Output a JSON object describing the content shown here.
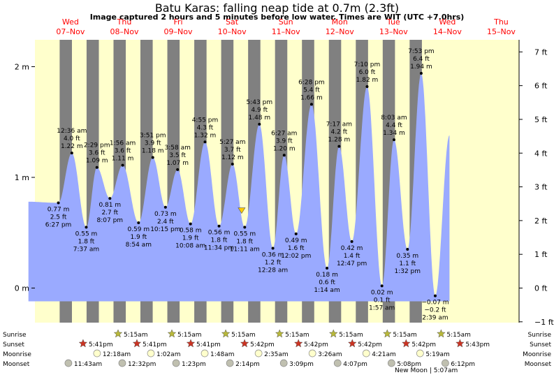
{
  "title": "Batu Karas: falling  neap tide at 0.7m (2.3ft)",
  "subtitle": "Image captured 2 hours and 5 minutes before low water. Times are WIT (UTC +7.0hrs)",
  "colors": {
    "day_bg": "#ffffcc",
    "night_bg": "#808080",
    "water": "#9aaaff",
    "marker": "#ffcc00"
  },
  "chart_data": {
    "type": "area",
    "day_labels": [
      {
        "dow": "Wed",
        "date": "07–Nov",
        "day": 7
      },
      {
        "dow": "Thu",
        "date": "08–Nov",
        "day": 8
      },
      {
        "dow": "Fri",
        "date": "09–Nov",
        "day": 9
      },
      {
        "dow": "Sat",
        "date": "10–Nov",
        "day": 10
      },
      {
        "dow": "Sun",
        "date": "11–Nov",
        "day": 11
      },
      {
        "dow": "Mon",
        "date": "12–Nov",
        "day": 12
      },
      {
        "dow": "Tue",
        "date": "13–Nov",
        "day": 13
      },
      {
        "dow": "Wed",
        "date": "14–Nov",
        "day": 14
      },
      {
        "dow": "Thu",
        "date": "15–Nov",
        "day": 15
      }
    ],
    "x_range_days": [
      6.66,
      15.0
    ],
    "y_left": {
      "unit": "m",
      "ticks": [
        {
          "v": 0,
          "label": "0 m"
        },
        {
          "v": 1,
          "label": "1 m"
        },
        {
          "v": 2,
          "label": "2 m"
        }
      ],
      "range": [
        -0.32,
        2.33
      ]
    },
    "y_right": {
      "unit": "ft",
      "ticks": [
        "−1 ft",
        "0 ft",
        "1 ft",
        "2 ft",
        "3 ft",
        "4 ft",
        "5 ft",
        "6 ft",
        "7 ft"
      ]
    },
    "tides": [
      {
        "day": 7.216,
        "m": 0.77,
        "time": "6:27 pm",
        "m_label": "0.77 m",
        "ft": "2.5 ft",
        "type": "low"
      },
      {
        "day": 7.466,
        "m": 1.22,
        "time": "12:36 am",
        "m_label": "1.22 m",
        "ft": "4.0 ft",
        "type": "high"
      },
      {
        "day": 7.734,
        "m": 0.55,
        "time": "7:37 am",
        "m_label": "0.55 m",
        "ft": "1.8 ft",
        "type": "low"
      },
      {
        "day": 7.932,
        "m": 1.09,
        "time": "2:29 pm",
        "m_label": "1.09 m",
        "ft": "3.6 ft",
        "type": "high"
      },
      {
        "day": 8.173,
        "m": 0.81,
        "time": "8:07 pm",
        "m_label": "0.81 m",
        "ft": "2.7 ft",
        "type": "low"
      },
      {
        "day": 8.41,
        "m": 1.11,
        "time": "1:56 am",
        "m_label": "1.11 m",
        "ft": "3.6 ft",
        "type": "high"
      },
      {
        "day": 8.705,
        "m": 0.59,
        "time": "8:54 am",
        "m_label": "0.59 m",
        "ft": "1.9 ft",
        "type": "low"
      },
      {
        "day": 8.97,
        "m": 1.18,
        "time": "3:51 pm",
        "m_label": "1.18 m",
        "ft": "3.9 ft",
        "type": "high"
      },
      {
        "day": 9.205,
        "m": 0.73,
        "time": "10:15 pm",
        "m_label": "0.73 m",
        "ft": "2.4 ft",
        "type": "low"
      },
      {
        "day": 9.43,
        "m": 1.07,
        "time": "3:58 am",
        "m_label": "1.07 m",
        "ft": "3.5 ft",
        "type": "high"
      },
      {
        "day": 9.67,
        "m": 0.58,
        "time": "10:08 am",
        "m_label": "0.58 m",
        "ft": "1.9 ft",
        "type": "low"
      },
      {
        "day": 9.94,
        "m": 1.32,
        "time": "4:55 pm",
        "m_label": "1.32 m",
        "ft": "4.3 ft",
        "type": "high"
      },
      {
        "day": 10.2,
        "m": 0.56,
        "time": "11:34 pm",
        "m_label": "0.56 m",
        "ft": "1.8 ft",
        "type": "low"
      },
      {
        "day": 10.45,
        "m": 1.12,
        "time": "5:27 am",
        "m_label": "1.12 m",
        "ft": "3.7 ft",
        "type": "high"
      },
      {
        "day": 10.677,
        "m": 0.55,
        "time": "11:11 am",
        "m_label": "0.55 m",
        "ft": "1.8 ft",
        "type": "low"
      },
      {
        "day": 10.95,
        "m": 1.48,
        "time": "5:43 pm",
        "m_label": "1.48 m",
        "ft": "4.9 ft",
        "type": "high"
      },
      {
        "day": 11.2,
        "m": 0.36,
        "time": "12:28 am",
        "m_label": "0.36 m",
        "ft": "1.2 ft",
        "type": "low"
      },
      {
        "day": 11.41,
        "m": 1.2,
        "time": "6:27 am",
        "m_label": "1.20 m",
        "ft": "3.9 ft",
        "type": "high"
      },
      {
        "day": 11.63,
        "m": 0.49,
        "time": "12:02 pm",
        "m_label": "0.49 m",
        "ft": "1.6 ft",
        "type": "low"
      },
      {
        "day": 11.918,
        "m": 1.66,
        "time": "6:28 pm",
        "m_label": "1.66 m",
        "ft": "5.4 ft",
        "type": "high"
      },
      {
        "day": 12.205,
        "m": 0.18,
        "time": "1:14 am",
        "m_label": "0.18 m",
        "ft": "0.6 ft",
        "type": "low"
      },
      {
        "day": 12.43,
        "m": 1.28,
        "time": "7:17 am",
        "m_label": "1.28 m",
        "ft": "4.2 ft",
        "type": "high"
      },
      {
        "day": 12.666,
        "m": 0.42,
        "time": "12:47 pm",
        "m_label": "0.42 m",
        "ft": "1.4 ft",
        "type": "low"
      },
      {
        "day": 12.95,
        "m": 1.82,
        "time": "7:10 pm",
        "m_label": "1.82 m",
        "ft": "6.0 ft",
        "type": "high"
      },
      {
        "day": 13.225,
        "m": 0.02,
        "time": "1:57 am",
        "m_label": "0.02 m",
        "ft": "0.1 ft",
        "type": "low"
      },
      {
        "day": 13.45,
        "m": 1.34,
        "time": "8:03 am",
        "m_label": "1.34 m",
        "ft": "4.4 ft",
        "type": "high"
      },
      {
        "day": 13.7,
        "m": 0.35,
        "time": "1:32 pm",
        "m_label": "0.35 m",
        "ft": "1.1 ft",
        "type": "low"
      },
      {
        "day": 13.955,
        "m": 1.94,
        "time": "7:53 pm",
        "m_label": "1.94 m",
        "ft": "6.4 ft",
        "type": "high"
      },
      {
        "day": 14.215,
        "m": -0.07,
        "time": "2:39 am",
        "m_label": "−0.07 m",
        "ft": "−0.2 ft",
        "type": "low"
      },
      {
        "day": 14.48,
        "m": 1.38,
        "time": "",
        "m_label": "",
        "ft": "",
        "type": "end"
      }
    ],
    "start_point": {
      "day": 6.66,
      "m": 0.78
    },
    "current_marker": {
      "day": 10.62,
      "m": 0.7
    },
    "night_intervals": [
      [
        7.24,
        7.468
      ],
      [
        7.74,
        7.968
      ],
      [
        8.24,
        8.468
      ],
      [
        8.74,
        8.968
      ],
      [
        9.24,
        9.468
      ],
      [
        9.74,
        9.968
      ],
      [
        10.24,
        10.468
      ],
      [
        10.74,
        10.968
      ],
      [
        11.24,
        11.468
      ],
      [
        11.74,
        11.968
      ],
      [
        12.24,
        12.468
      ],
      [
        12.74,
        12.968
      ],
      [
        13.24,
        13.468
      ],
      [
        13.74,
        13.968
      ]
    ],
    "sunrise": {
      "label": "Sunrise",
      "day_offsets": [
        7.468,
        7.968,
        8.468,
        8.968,
        9.468,
        9.968,
        10.468,
        10.968,
        11.468,
        11.968,
        12.468,
        12.968,
        13.468,
        13.968
      ],
      "times": [
        "5:15am",
        "5:15am",
        "5:15am",
        "5:15am",
        "5:15am",
        "5:15am",
        "5:15am"
      ]
    },
    "sunset": {
      "label": "Sunset",
      "times": [
        "5:41pm",
        "5:41pm",
        "5:41pm",
        "5:42pm",
        "5:42pm",
        "5:42pm",
        "5:42pm",
        "5:43pm"
      ]
    },
    "moonrise": {
      "label": "Moonrise",
      "times": [
        "12:18am",
        "1:02am",
        "1:48am",
        "2:35am",
        "3:26am",
        "4:21am",
        "5:19am"
      ]
    },
    "moonset": {
      "label": "Moonset",
      "times": [
        "11:43am",
        "12:32pm",
        "1:23pm",
        "2:14pm",
        "3:09pm",
        "4:07pm",
        "5:08pm",
        "6:12pm"
      ]
    },
    "new_moon": "New Moon | 5:07am"
  }
}
